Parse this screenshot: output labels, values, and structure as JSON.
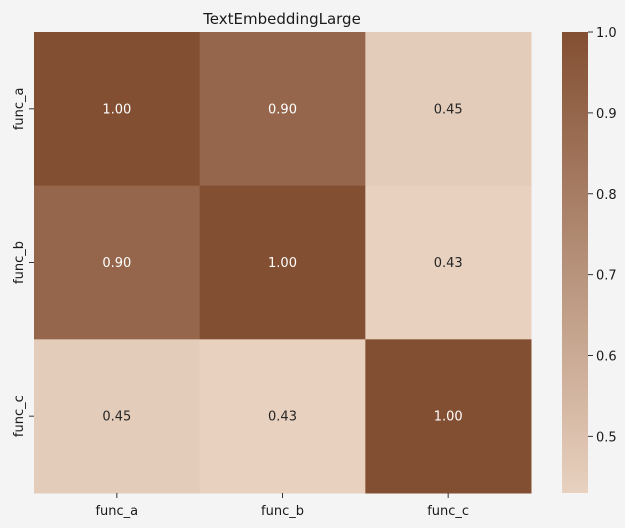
{
  "chart_data": {
    "type": "heatmap",
    "title": "TextEmbeddingLarge",
    "xlabel": "",
    "ylabel": "",
    "x_categories": [
      "func_a",
      "func_b",
      "func_c"
    ],
    "y_categories": [
      "func_a",
      "func_b",
      "func_c"
    ],
    "values": [
      [
        1.0,
        0.9,
        0.45
      ],
      [
        0.9,
        1.0,
        0.43
      ],
      [
        0.45,
        0.43,
        1.0
      ]
    ],
    "value_labels": [
      [
        "1.00",
        "0.90",
        "0.45"
      ],
      [
        "0.90",
        "1.00",
        "0.43"
      ],
      [
        "0.45",
        "0.43",
        "1.00"
      ]
    ],
    "colorbar": {
      "range": [
        0.43,
        1.0
      ],
      "ticks": [
        0.5,
        0.6,
        0.7,
        0.8,
        0.9,
        1.0
      ],
      "tick_labels": [
        "0.5",
        "0.6",
        "0.7",
        "0.8",
        "0.9",
        "1.0"
      ],
      "color_low": "#e8d1bf",
      "color_high": "#834f32"
    },
    "background": "#f4f4f4",
    "grid": false
  }
}
